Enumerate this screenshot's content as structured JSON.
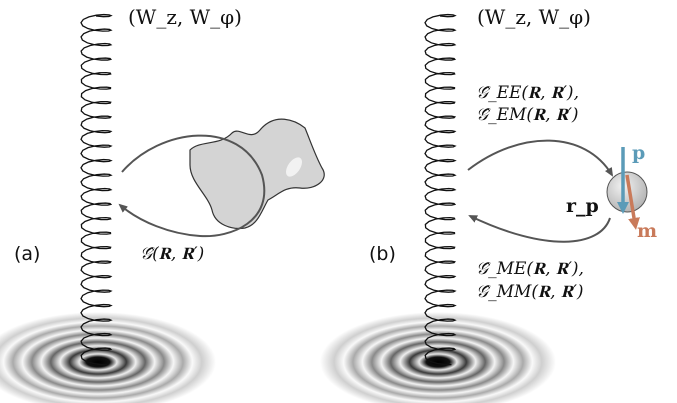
{
  "panel_a": {
    "label": "(a)",
    "field_label": "(W_z, W_φ)",
    "green_label": "𝒢̂(𝐑, 𝐑′)"
  },
  "panel_b": {
    "label": "(b)",
    "field_label": "(W_z, W_φ)",
    "green_ee": "𝒢̂_EE(𝐑, 𝐑′),",
    "green_em": "𝒢̂_EM(𝐑, 𝐑′)",
    "green_me": "𝒢̂_ME(𝐑, 𝐑′),",
    "green_mm": "𝒢̂_MM(𝐑, 𝐑′)",
    "position_label": "𝐫_p",
    "electric_dipole": "p",
    "magnetic_dipole": "m"
  },
  "colors": {
    "helix": "#111111",
    "arrow": "#555555",
    "scatterer_fill": "#d4d4d4",
    "electric_dipole": "#5b9bb8",
    "magnetic_dipole": "#c97a5a"
  }
}
